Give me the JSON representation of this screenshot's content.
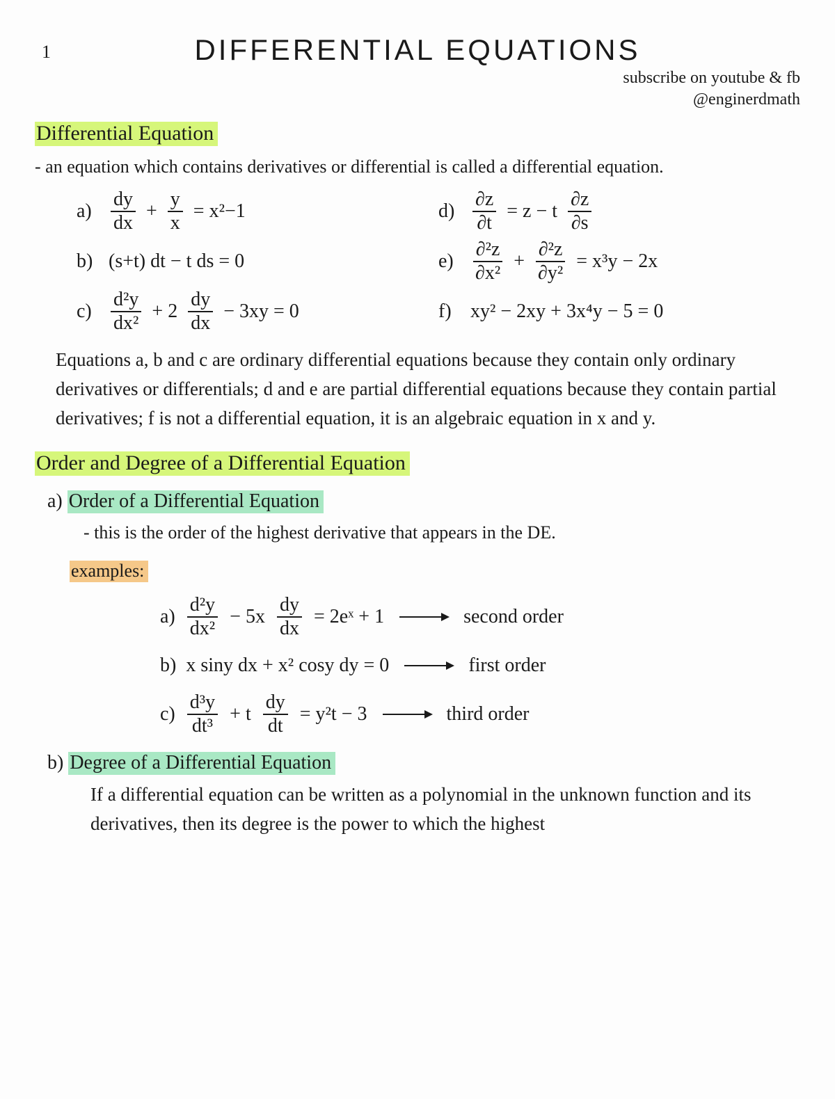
{
  "page_number": "1",
  "title": "DIFFERENTIAL EQUATIONS",
  "subscribe": {
    "line1": "subscribe on youtube & fb",
    "line2": "@enginerdmath"
  },
  "colors": {
    "highlight_lime": "#d6f67a",
    "highlight_green": "#a9e8c4",
    "highlight_orange": "#f5c889",
    "ink": "#1a1a1a",
    "paper": "#fdfdfd"
  },
  "section1": {
    "heading": "Differential Equation",
    "definition": "an equation which contains derivatives or differential is called a differential equation.",
    "examples": {
      "a": {
        "lhs_frac1_num": "dy",
        "lhs_frac1_den": "dx",
        "plus": "+",
        "lhs_frac2_num": "y",
        "lhs_frac2_den": "x",
        "eq": "= x²−1"
      },
      "b": {
        "text": "(s+t) dt − t ds = 0"
      },
      "c": {
        "frac1_num": "d²y",
        "frac1_den": "dx²",
        "mid": "+ 2",
        "frac2_num": "dy",
        "frac2_den": "dx",
        "tail": "− 3xy = 0"
      },
      "d": {
        "frac1_num": "∂z",
        "frac1_den": "∂t",
        "mid": "= z − t",
        "frac2_num": "∂z",
        "frac2_den": "∂s"
      },
      "e": {
        "frac1_num": "∂²z",
        "frac1_den": "∂x²",
        "plus": "+",
        "frac2_num": "∂²z",
        "frac2_den": "∂y²",
        "tail": "= x³y − 2x"
      },
      "f": {
        "text": "xy² − 2xy + 3x⁴y − 5 = 0"
      }
    },
    "explanation": "Equations a, b and c are ordinary differential equations because they contain only ordinary derivatives or differentials; d and e are partial differential equations because they contain partial derivatives; f is not a differential equation, it is an algebraic equation in x and y."
  },
  "section2": {
    "heading": "Order and Degree of a Differential Equation",
    "order": {
      "label": "a)",
      "heading": "Order of a Differential Equation",
      "definition": "this is the order of the highest derivative that appears in the DE.",
      "examples_label": "examples:",
      "items": [
        {
          "label": "a)",
          "frac1_num": "d²y",
          "frac1_den": "dx²",
          "mid": "− 5x",
          "frac2_num": "dy",
          "frac2_den": "dx",
          "tail": "= 2eˣ + 1",
          "result": "second order"
        },
        {
          "label": "b)",
          "text": "x siny dx + x² cosy dy = 0",
          "result": "first order"
        },
        {
          "label": "c)",
          "frac1_num": "d³y",
          "frac1_den": "dt³",
          "mid": "+ t",
          "frac2_num": "dy",
          "frac2_den": "dt",
          "tail": "= y²t − 3",
          "result": "third order"
        }
      ]
    },
    "degree": {
      "label": "b)",
      "heading": "Degree of a Differential Equation",
      "definition": "If a differential equation can be written as a polynomial in the unknown function and its derivatives, then its degree is the power to which the highest"
    }
  }
}
